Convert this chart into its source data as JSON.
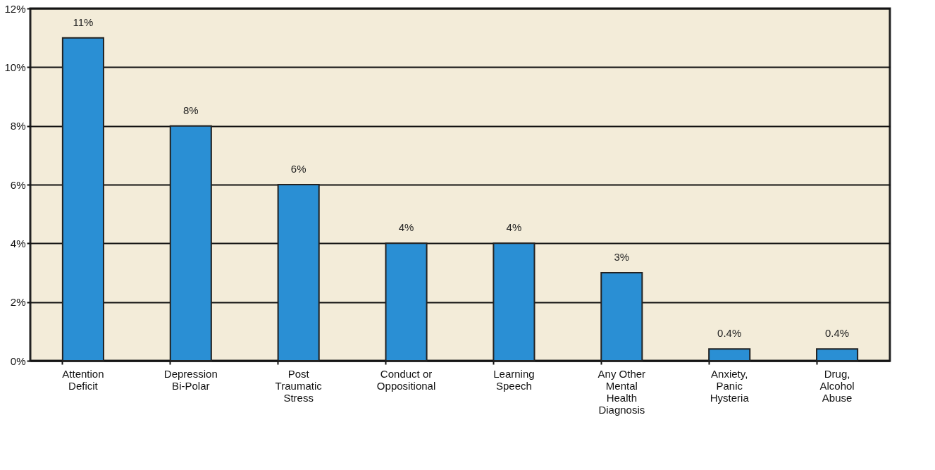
{
  "chart_data": {
    "type": "bar",
    "categories": [
      "Attention\nDeficit",
      "Depression\nBi-Polar",
      "Post\nTraumatic\nStress",
      "Conduct or\nOppositional",
      "Learning\nSpeech",
      "Any Other\nMental\nHealth\nDiagnosis",
      "Anxiety,\nPanic\nHysteria",
      "Drug,\nAlcohol\nAbuse"
    ],
    "values": [
      11,
      8,
      6,
      4,
      4,
      3,
      0.4,
      0.4
    ],
    "value_labels": [
      "11%",
      "8%",
      "6%",
      "4%",
      "4%",
      "3%",
      "0.4%",
      "0.4%"
    ],
    "color": "#2a8fd4",
    "ylim": [
      0,
      12
    ],
    "yticks": [
      {
        "value": 0,
        "label": "0%"
      },
      {
        "value": 2,
        "label": "2%"
      },
      {
        "value": 4,
        "label": "4%"
      },
      {
        "value": 6,
        "label": "6%"
      },
      {
        "value": 8,
        "label": "8%"
      },
      {
        "value": 10,
        "label": "10%"
      },
      {
        "value": 12,
        "label": "12%"
      }
    ],
    "grid": "y"
  }
}
